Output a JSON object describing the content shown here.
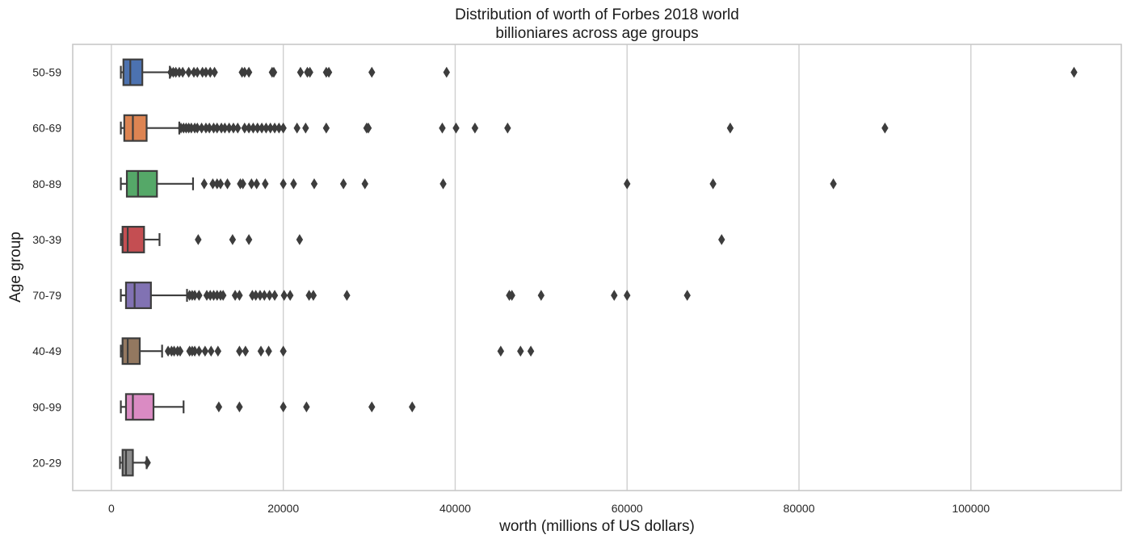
{
  "chart_data": {
    "type": "boxplot",
    "orientation": "horizontal",
    "title": [
      "Distribution of worth of Forbes 2018 world",
      "billioniares across age groups"
    ],
    "xlabel": "worth (millions of US dollars)",
    "ylabel": "Age group",
    "xlim": [
      -4500,
      117500
    ],
    "xticks": [
      0,
      20000,
      40000,
      60000,
      80000,
      100000
    ],
    "xtick_labels": [
      "0",
      "20000",
      "40000",
      "60000",
      "80000",
      "100000"
    ],
    "grid": "vertical",
    "categories": [
      "50-59",
      "60-69",
      "80-89",
      "30-39",
      "70-79",
      "40-49",
      "90-99",
      "20-29"
    ],
    "colors": [
      "#4c72b0",
      "#dd8452",
      "#55a868",
      "#c44e52",
      "#8172b3",
      "#937860",
      "#da8bc3",
      "#8c8c8c"
    ],
    "series": [
      {
        "category": "50-59",
        "whisker_low": 1100,
        "q1": 1400,
        "median": 2200,
        "q3": 3600,
        "whisker_high": 6800,
        "outliers": [
          6900,
          7200,
          7500,
          7900,
          8300,
          9000,
          9600,
          10000,
          10600,
          11000,
          11500,
          12000,
          15200,
          15500,
          16000,
          18700,
          18900,
          22000,
          22800,
          23100,
          25000,
          25300,
          30300,
          39000,
          112000
        ]
      },
      {
        "category": "60-69",
        "whisker_low": 1100,
        "q1": 1500,
        "median": 2500,
        "q3": 4100,
        "whisker_high": 7900,
        "outliers": [
          8100,
          8400,
          8700,
          9000,
          9300,
          9700,
          10000,
          10500,
          11000,
          11400,
          11900,
          12300,
          12800,
          13200,
          13700,
          14200,
          14700,
          15500,
          16000,
          16500,
          17000,
          17500,
          18000,
          18500,
          19000,
          19500,
          20000,
          21600,
          22600,
          25000,
          29700,
          29900,
          38500,
          40100,
          42300,
          46100,
          72000,
          90000
        ]
      },
      {
        "category": "80-89",
        "whisker_low": 1100,
        "q1": 1800,
        "median": 3100,
        "q3": 5300,
        "whisker_high": 9500,
        "outliers": [
          10800,
          11800,
          12300,
          12700,
          13500,
          15000,
          15300,
          16300,
          16900,
          17900,
          20000,
          21200,
          23600,
          27000,
          29500,
          38600,
          60000,
          70000,
          84000
        ]
      },
      {
        "category": "30-39",
        "whisker_low": 1100,
        "q1": 1300,
        "median": 1900,
        "q3": 3800,
        "whisker_high": 5600,
        "outliers": [
          10100,
          14100,
          16000,
          21900,
          71000
        ]
      },
      {
        "category": "70-79",
        "whisker_low": 1100,
        "q1": 1700,
        "median": 2700,
        "q3": 4600,
        "whisker_high": 8800,
        "outliers": [
          9100,
          9400,
          9700,
          10200,
          11100,
          11500,
          11900,
          12300,
          12700,
          13000,
          14400,
          14900,
          16400,
          16800,
          17300,
          17800,
          18400,
          19000,
          20100,
          20800,
          23000,
          23500,
          27400,
          46300,
          46600,
          50000,
          58500,
          60000,
          67000
        ]
      },
      {
        "category": "40-49",
        "whisker_low": 1100,
        "q1": 1300,
        "median": 1900,
        "q3": 3300,
        "whisker_high": 5900,
        "outliers": [
          6600,
          7000,
          7300,
          7700,
          8000,
          9100,
          9400,
          9700,
          10200,
          10900,
          11600,
          12400,
          14900,
          15600,
          17400,
          18300,
          20000,
          45300,
          47600,
          48800
        ]
      },
      {
        "category": "90-99",
        "whisker_low": 1100,
        "q1": 1700,
        "median": 2500,
        "q3": 4900,
        "whisker_high": 8400,
        "outliers": [
          12500,
          14900,
          20000,
          22700,
          30300,
          35000
        ]
      },
      {
        "category": "20-29",
        "whisker_low": 1000,
        "q1": 1300,
        "median": 1700,
        "q3": 2500,
        "whisker_high": 4100,
        "outliers": [
          4200
        ]
      }
    ]
  }
}
